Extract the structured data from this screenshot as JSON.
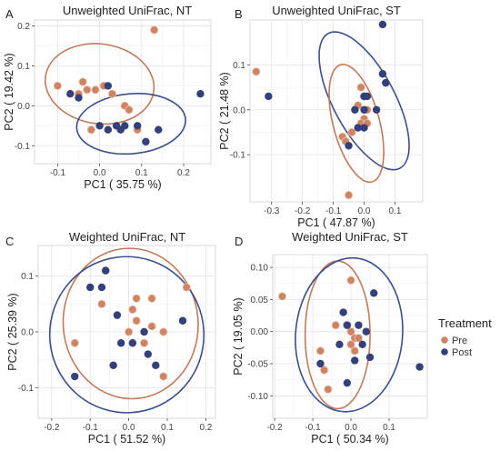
{
  "legend": {
    "title": "Treatment",
    "entries": [
      {
        "label": "Pre",
        "color": "#cd8462"
      },
      {
        "label": "Post",
        "color": "#34407a"
      }
    ]
  },
  "colors": {
    "pre": "#cd8462",
    "post": "#34407a",
    "pre_ellipse": "#c27a5c",
    "post_ellipse": "#3b4f8e"
  },
  "chart_data": [
    {
      "type": "scatter",
      "panel": "A",
      "title": "Unweighted UniFrac, NT",
      "xlabel": "PC1 ( 35.75 %)",
      "ylabel": "PC2 ( 19.42 %)",
      "xlim": [
        -0.155,
        0.265
      ],
      "ylim": [
        -0.145,
        0.215
      ],
      "xticks": [
        -0.1,
        0.0,
        0.1,
        0.2
      ],
      "xtick_labels": [
        "-0.1",
        "0.0",
        "0.1",
        "0.2"
      ],
      "yticks": [
        -0.1,
        0.0,
        0.1,
        0.2
      ],
      "ytick_labels": [
        "-0.1",
        "0.0",
        "0.1",
        "0.2"
      ],
      "grid": true,
      "series": [
        {
          "name": "Pre",
          "points": [
            [
              0.13,
              0.19
            ],
            [
              -0.04,
              0.06
            ],
            [
              -0.1,
              0.05
            ],
            [
              -0.03,
              0.04
            ],
            [
              -0.01,
              0.04
            ],
            [
              0.01,
              0.05
            ],
            [
              -0.05,
              0.03
            ],
            [
              0.03,
              0.03
            ],
            [
              0.06,
              0.0
            ],
            [
              0.07,
              -0.01
            ],
            [
              -0.02,
              -0.06
            ],
            [
              0.09,
              -0.06
            ]
          ]
        },
        {
          "name": "Post",
          "points": [
            [
              0.24,
              0.03
            ],
            [
              0.02,
              0.05
            ],
            [
              -0.07,
              0.03
            ],
            [
              -0.05,
              0.02
            ],
            [
              0.0,
              -0.05
            ],
            [
              0.02,
              -0.06
            ],
            [
              0.04,
              -0.05
            ],
            [
              0.06,
              -0.05
            ],
            [
              0.09,
              -0.05
            ],
            [
              0.14,
              -0.06
            ],
            [
              0.11,
              -0.09
            ],
            [
              0.05,
              -0.06
            ]
          ]
        }
      ],
      "ellipses": [
        {
          "group": "Pre",
          "cx": 0.0,
          "cy": 0.055,
          "rx": 0.13,
          "ry": 0.1,
          "angle": -8
        },
        {
          "group": "Post",
          "cx": 0.075,
          "cy": -0.045,
          "rx": 0.13,
          "ry": 0.075,
          "angle": 5
        }
      ]
    },
    {
      "type": "scatter",
      "panel": "B",
      "title": "Unweighted UniFrac, ST",
      "xlabel": "PC1 ( 47.87 %)",
      "ylabel": "PC2 ( 21.48 %)",
      "xlim": [
        -0.37,
        0.19
      ],
      "ylim": [
        -0.205,
        0.2
      ],
      "xticks": [
        -0.3,
        -0.2,
        -0.1,
        0.0,
        0.1
      ],
      "xtick_labels": [
        "-0.3",
        "-0.2",
        "-0.1",
        "0.0",
        "0.1"
      ],
      "yticks": [
        -0.1,
        0.0,
        0.1
      ],
      "ytick_labels": [
        "-0.1",
        "0.0",
        "0.1"
      ],
      "grid": true,
      "series": [
        {
          "name": "Pre",
          "points": [
            [
              -0.35,
              0.085
            ],
            [
              -0.01,
              0.05
            ],
            [
              0.0,
              0.03
            ],
            [
              -0.02,
              0.01
            ],
            [
              0.01,
              0.0
            ],
            [
              0.0,
              -0.02
            ],
            [
              -0.01,
              -0.03
            ],
            [
              0.01,
              -0.03
            ],
            [
              -0.07,
              -0.06
            ],
            [
              -0.06,
              -0.07
            ],
            [
              -0.04,
              -0.05
            ],
            [
              -0.05,
              -0.19
            ]
          ]
        },
        {
          "name": "Post",
          "points": [
            [
              0.06,
              0.19
            ],
            [
              -0.31,
              0.03
            ],
            [
              0.06,
              0.08
            ],
            [
              0.07,
              0.06
            ],
            [
              0.01,
              0.03
            ],
            [
              0.0,
              0.03
            ],
            [
              -0.03,
              0.0
            ],
            [
              0.0,
              0.0
            ],
            [
              0.04,
              0.0
            ],
            [
              -0.02,
              -0.04
            ],
            [
              0.0,
              -0.04
            ],
            [
              -0.05,
              -0.08
            ]
          ]
        }
      ],
      "ellipses": [
        {
          "group": "Post",
          "cx": 0.0,
          "cy": 0.02,
          "rx": 0.1,
          "ry": 0.17,
          "angle": 28
        },
        {
          "group": "Pre",
          "cx": -0.025,
          "cy": -0.03,
          "rx": 0.075,
          "ry": 0.135,
          "angle": 15
        }
      ]
    },
    {
      "type": "scatter",
      "panel": "C",
      "title": "Weighted UniFrac, NT",
      "xlabel": "PC1 ( 51.52 %)",
      "ylabel": "PC2 ( 25.39 %)",
      "xlim": [
        -0.235,
        0.225
      ],
      "ylim": [
        -0.155,
        0.155
      ],
      "xticks": [
        -0.2,
        -0.1,
        0.0,
        0.1,
        0.2
      ],
      "xtick_labels": [
        "-0.2",
        "-0.1",
        "0.0",
        "0.1",
        "0.2"
      ],
      "yticks": [
        -0.1,
        0.0,
        0.1
      ],
      "ytick_labels": [
        "-0.1",
        "0.0",
        "0.1"
      ],
      "grid": true,
      "series": [
        {
          "name": "Pre",
          "points": [
            [
              -0.06,
              0.11
            ],
            [
              0.15,
              0.08
            ],
            [
              0.02,
              0.06
            ],
            [
              0.06,
              0.06
            ],
            [
              -0.07,
              0.05
            ],
            [
              0.01,
              0.04
            ],
            [
              0.02,
              0.02
            ],
            [
              0.0,
              0.0
            ],
            [
              0.09,
              0.0
            ],
            [
              0.06,
              0.01
            ],
            [
              -0.14,
              -0.02
            ],
            [
              0.09,
              -0.08
            ],
            [
              0.04,
              -0.02
            ]
          ]
        },
        {
          "name": "Post",
          "points": [
            [
              -0.06,
              0.11
            ],
            [
              -0.1,
              0.08
            ],
            [
              -0.07,
              0.08
            ],
            [
              -0.03,
              0.03
            ],
            [
              0.14,
              0.02
            ],
            [
              0.04,
              0.0
            ],
            [
              0.01,
              -0.02
            ],
            [
              -0.02,
              -0.02
            ],
            [
              0.05,
              -0.04
            ],
            [
              -0.04,
              -0.06
            ],
            [
              0.07,
              -0.06
            ],
            [
              -0.14,
              -0.08
            ]
          ]
        }
      ],
      "ellipses": [
        {
          "group": "Pre",
          "cx": 0.005,
          "cy": 0.015,
          "rx": 0.175,
          "ry": 0.135,
          "angle": 5
        },
        {
          "group": "Post",
          "cx": -0.005,
          "cy": -0.005,
          "rx": 0.2,
          "ry": 0.14,
          "angle": 3
        }
      ]
    },
    {
      "type": "scatter",
      "panel": "D",
      "title": "Weighted UniFrac, ST",
      "xlabel": "PC1 ( 50.34 %)",
      "ylabel": "PC2 ( 19.05 %)",
      "xlim": [
        -0.205,
        0.2
      ],
      "ylim": [
        -0.135,
        0.12
      ],
      "xticks": [
        -0.2,
        -0.1,
        0.0,
        0.1
      ],
      "xtick_labels": [
        "-0.2",
        "-0.1",
        "0.0",
        "0.1"
      ],
      "yticks": [
        -0.1,
        -0.05,
        0.0,
        0.05,
        0.1
      ],
      "ytick_labels": [
        "-0.10",
        "-0.05",
        "0.00",
        "0.05",
        "0.10"
      ],
      "grid": true,
      "series": [
        {
          "name": "Pre",
          "points": [
            [
              -0.18,
              0.055
            ],
            [
              0.0,
              0.08
            ],
            [
              -0.04,
              0.01
            ],
            [
              -0.01,
              0.01
            ],
            [
              0.0,
              0.0
            ],
            [
              0.01,
              -0.01
            ],
            [
              0.0,
              -0.02
            ],
            [
              0.01,
              -0.03
            ],
            [
              -0.08,
              -0.03
            ],
            [
              -0.07,
              -0.06
            ],
            [
              -0.06,
              -0.09
            ],
            [
              0.02,
              -0.01
            ]
          ]
        },
        {
          "name": "Post",
          "points": [
            [
              0.06,
              0.06
            ],
            [
              -0.02,
              0.03
            ],
            [
              -0.01,
              0.01
            ],
            [
              0.02,
              0.01
            ],
            [
              0.04,
              0.0
            ],
            [
              -0.03,
              -0.02
            ],
            [
              0.03,
              -0.02
            ],
            [
              0.05,
              -0.04
            ],
            [
              -0.08,
              -0.05
            ],
            [
              -0.01,
              -0.08
            ],
            [
              0.18,
              -0.055
            ],
            [
              0.01,
              -0.045
            ]
          ]
        }
      ],
      "ellipses": [
        {
          "group": "Pre",
          "cx": -0.035,
          "cy": -0.005,
          "rx": 0.085,
          "ry": 0.115,
          "angle": 0
        },
        {
          "group": "Post",
          "cx": -0.005,
          "cy": -0.005,
          "rx": 0.14,
          "ry": 0.12,
          "angle": -5
        }
      ]
    }
  ]
}
